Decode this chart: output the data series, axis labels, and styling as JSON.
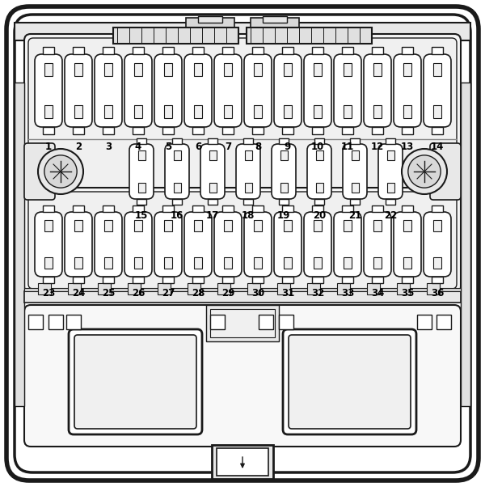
{
  "bg_color": "#ffffff",
  "line_color": "#1a1a1a",
  "fill_white": "#ffffff",
  "fill_light": "#f0f0f0",
  "fill_mid": "#e0e0e0",
  "fuse_labels_row1": [
    "1",
    "2",
    "3",
    "4",
    "5",
    "6",
    "7",
    "8",
    "9",
    "10",
    "11",
    "12",
    "13",
    "14"
  ],
  "fuse_labels_row2": [
    "15",
    "16",
    "17",
    "18",
    "19",
    "20",
    "21",
    "22"
  ],
  "fuse_labels_row3": [
    "23",
    "24",
    "25",
    "26",
    "27",
    "28",
    "29",
    "30",
    "31",
    "32",
    "33",
    "34",
    "35",
    "36"
  ],
  "label_fontsize": 8.5,
  "label_fontweight": "bold",
  "label_color": "#000000"
}
